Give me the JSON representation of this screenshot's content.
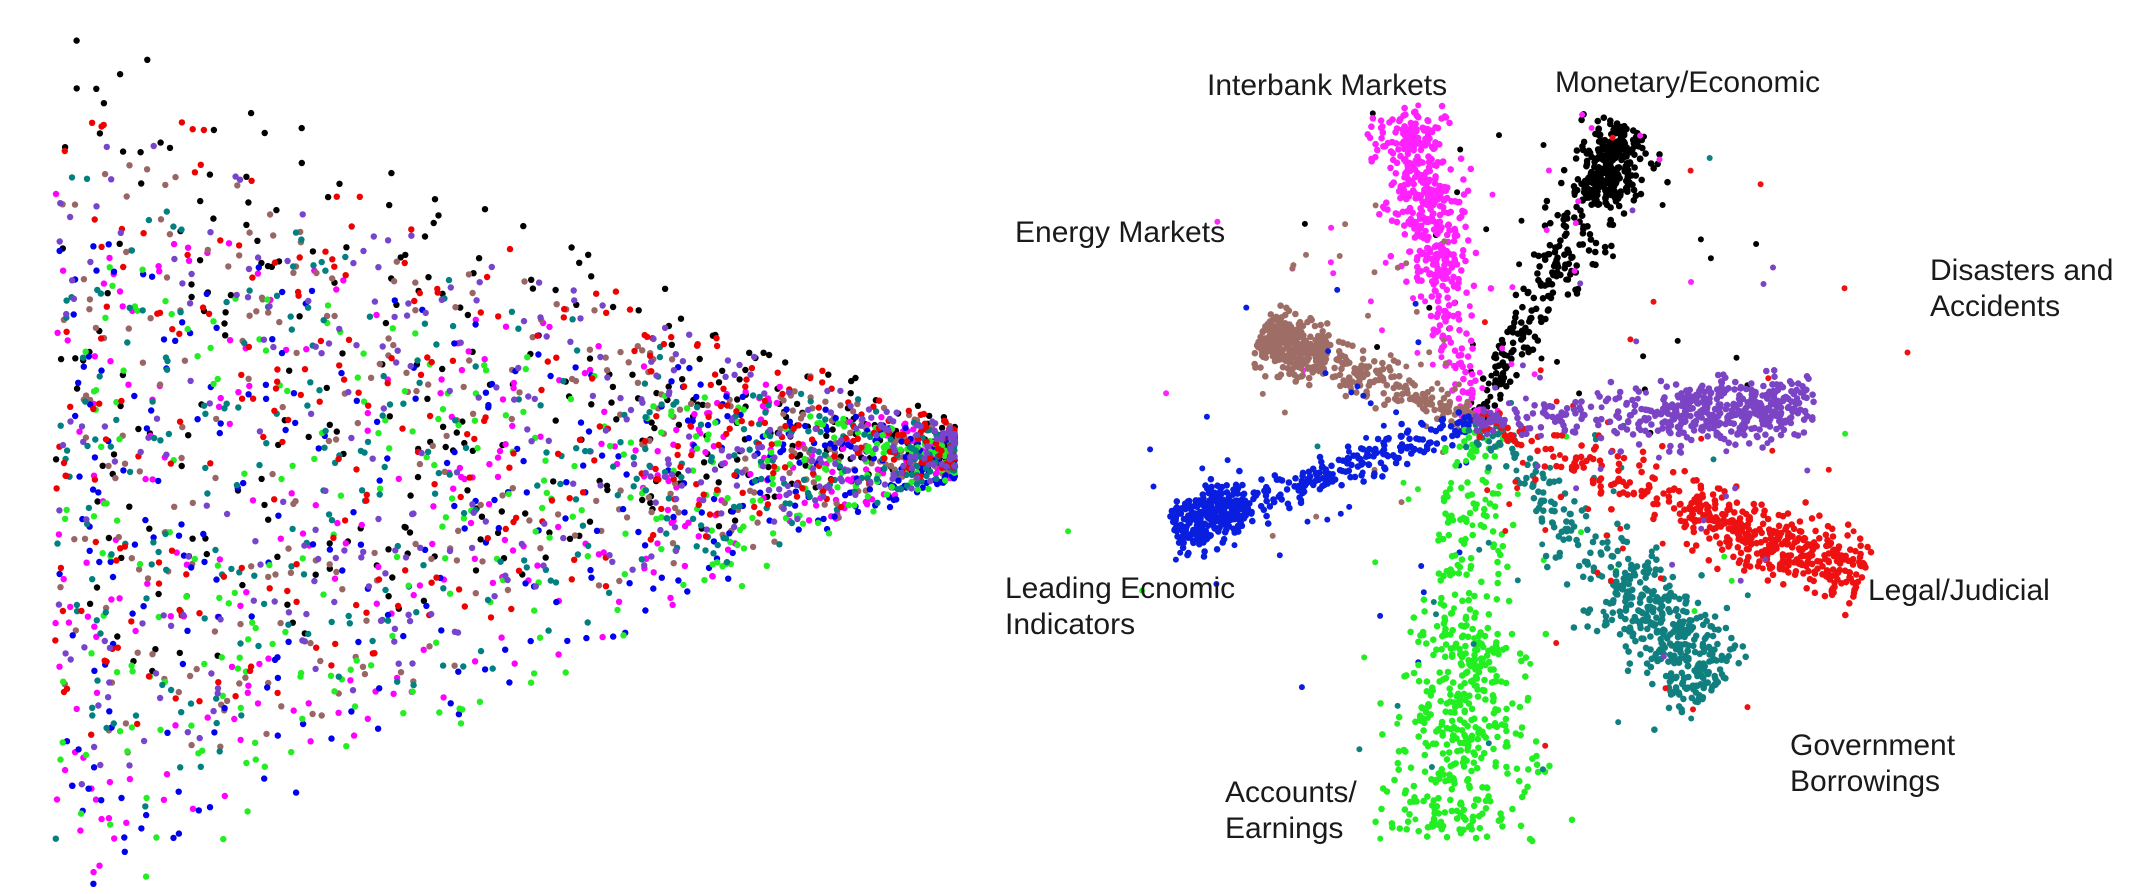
{
  "chart_data": [
    {
      "type": "scatter",
      "title": "",
      "xlabel": "",
      "ylabel": "",
      "grid": false,
      "legend": "none",
      "axes_visible": false,
      "series": [
        {
          "color": "#000000"
        },
        {
          "color": "#ff00ff"
        },
        {
          "color": "#996666"
        },
        {
          "color": "#0000ee"
        },
        {
          "color": "#22ee22"
        },
        {
          "color": "#008080"
        },
        {
          "color": "#ee0000"
        },
        {
          "color": "#7744cc"
        }
      ]
    },
    {
      "type": "scatter",
      "title": "",
      "xlabel": "",
      "ylabel": "",
      "grid": false,
      "legend": "none",
      "axes_visible": false,
      "series": [
        {
          "name": "Monetary/Economic",
          "color": "#000000",
          "label_lines": [
            "Monetary/Economic"
          ]
        },
        {
          "name": "Interbank Markets",
          "color": "#ff22ff",
          "label_lines": [
            "Interbank Markets"
          ]
        },
        {
          "name": "Energy Markets",
          "color": "#9e6e66",
          "label_lines": [
            "Energy Markets"
          ]
        },
        {
          "name": "Leading Ecnomic Indicators",
          "color": "#0a1ee0",
          "label_lines": [
            "Leading Ecnomic",
            "Indicators"
          ]
        },
        {
          "name": "Accounts/ Earnings",
          "color": "#22ee22",
          "label_lines": [
            "Accounts/",
            "Earnings"
          ]
        },
        {
          "name": "Government Borrowings",
          "color": "#117f7f",
          "label_lines": [
            "Government",
            "Borrowings"
          ]
        },
        {
          "name": "Legal/Judicial",
          "color": "#ee1111",
          "label_lines": [
            "Legal/Judicial"
          ]
        },
        {
          "name": "Disasters and Accidents",
          "color": "#7a44c4",
          "label_lines": [
            "Disasters and",
            "Accidents"
          ]
        }
      ]
    }
  ]
}
